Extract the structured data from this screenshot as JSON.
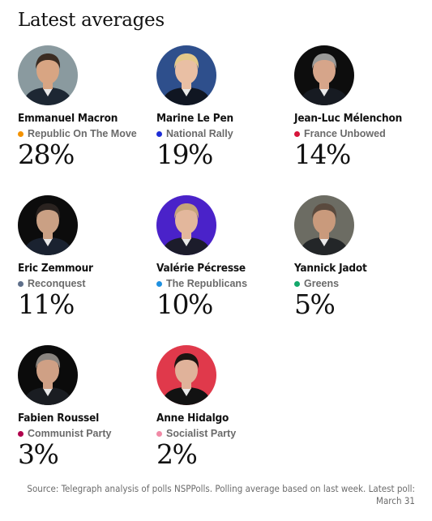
{
  "header": {
    "title": "Latest averages"
  },
  "chart_data": {
    "type": "table",
    "title": "Latest averages",
    "unit": "%",
    "candidates": [
      {
        "name": "Emmanuel Macron",
        "party": "Republic On The Move",
        "value": 28,
        "value_label": "28%",
        "party_color": "#f39200",
        "avatar_bg": "#8a9a9f",
        "suit_color": "#1d2733",
        "hair_color": "#3b2c22",
        "skin_color": "#d8a583"
      },
      {
        "name": "Marine Le Pen",
        "party": "National Rally",
        "value": 19,
        "value_label": "19%",
        "party_color": "#1d2dd6",
        "avatar_bg": "#2e4f8c",
        "suit_color": "#101622",
        "hair_color": "#e4c98a",
        "skin_color": "#e9bfa4"
      },
      {
        "name": "Jean-Luc Mélenchon",
        "party": "France Unbowed",
        "value": 14,
        "value_label": "14%",
        "party_color": "#d7153a",
        "avatar_bg": "#0d0d0d",
        "suit_color": "#171b22",
        "hair_color": "#9a9a98",
        "skin_color": "#d6a58a"
      },
      {
        "name": "Eric Zemmour",
        "party": "Reconquest",
        "value": 11,
        "value_label": "11%",
        "party_color": "#5e6f8a",
        "avatar_bg": "#0c0c0c",
        "suit_color": "#1a2230",
        "hair_color": "#2a2320",
        "skin_color": "#caa084"
      },
      {
        "name": "Valérie Pécresse",
        "party": "The Republicans",
        "value": 10,
        "value_label": "10%",
        "party_color": "#1e90e0",
        "avatar_bg": "#4a22c9",
        "suit_color": "#1c1c2b",
        "hair_color": "#c5a479",
        "skin_color": "#e3b79c"
      },
      {
        "name": "Yannick Jadot",
        "party": "Greens",
        "value": 5,
        "value_label": "5%",
        "party_color": "#13a86b",
        "avatar_bg": "#6c6c63",
        "suit_color": "#232628",
        "hair_color": "#5a4a3e",
        "skin_color": "#c99a7c"
      },
      {
        "name": "Fabien Roussel",
        "party": "Communist Party",
        "value": 3,
        "value_label": "3%",
        "party_color": "#b0004c",
        "avatar_bg": "#0b0b0b",
        "suit_color": "#1a1d22",
        "hair_color": "#8a8580",
        "skin_color": "#cfa085"
      },
      {
        "name": "Anne Hidalgo",
        "party": "Socialist Party",
        "value": 2,
        "value_label": "2%",
        "party_color": "#f08aa6",
        "avatar_bg": "#e0394b",
        "suit_color": "#121212",
        "hair_color": "#1c1512",
        "skin_color": "#e0b29a"
      }
    ]
  },
  "footer": {
    "source": "Source: Telegraph analysis of polls NSPPolls. Polling average based on last week. Latest poll: March 31"
  }
}
